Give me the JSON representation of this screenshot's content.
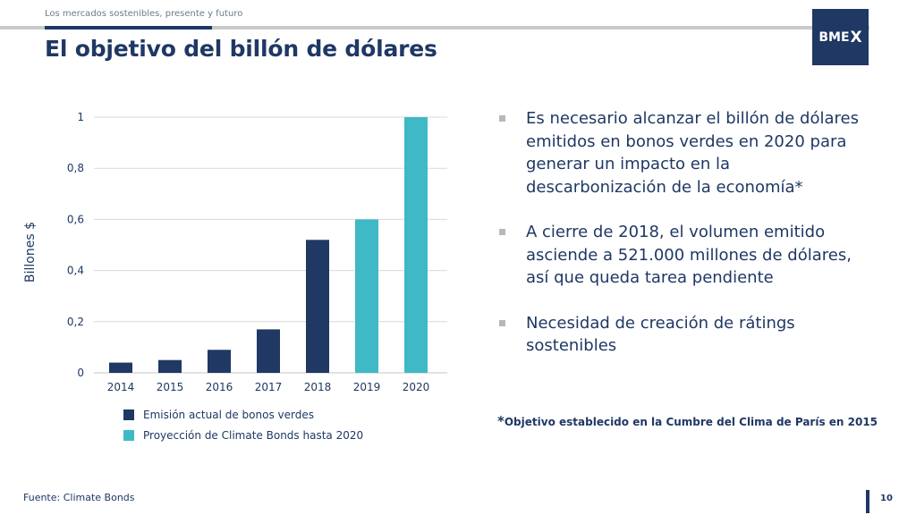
{
  "header": {
    "subtitle": "Los mercados sostenibles, presente y futuro",
    "title": "El objetivo del billón de dólares",
    "logo_text": "BME",
    "logo_mark": "X"
  },
  "colors": {
    "navy": "#1f3864",
    "teal": "#3fb9c6",
    "grid": "#d9d9d9"
  },
  "chart_data": {
    "type": "bar",
    "categories": [
      "2014",
      "2015",
      "2016",
      "2017",
      "2018",
      "2019",
      "2020"
    ],
    "values": [
      0.04,
      0.05,
      0.09,
      0.17,
      0.52,
      0.6,
      1.0
    ],
    "series_index": [
      0,
      0,
      0,
      0,
      0,
      1,
      1
    ],
    "series": [
      {
        "name": "Emisión actual de bonos verdes",
        "color": "#1f3864"
      },
      {
        "name": "Proyección de Climate Bonds hasta 2020",
        "color": "#3fb9c6"
      }
    ],
    "yticks": [
      "0",
      "0,2",
      "0,4",
      "0,6",
      "0,8",
      "1"
    ],
    "ylim": [
      0,
      1
    ],
    "ylabel": "Billones $",
    "grid": true,
    "legend": "bottom"
  },
  "bullets": [
    "Es necesario alcanzar el billón de dólares emitidos en bonos verdes en 2020 para generar un impacto en la descarbonización de la economía*",
    "A cierre de 2018, el volumen emitido asciende a 521.000 millones de dólares, así que queda tarea pendiente",
    "Necesidad de creación de rátings sostenibles"
  ],
  "footnote": {
    "star": "*",
    "text": "Objetivo establecido en la Cumbre del Clima de París en 2015"
  },
  "source": "Fuente: Climate Bonds",
  "page_number": "10"
}
